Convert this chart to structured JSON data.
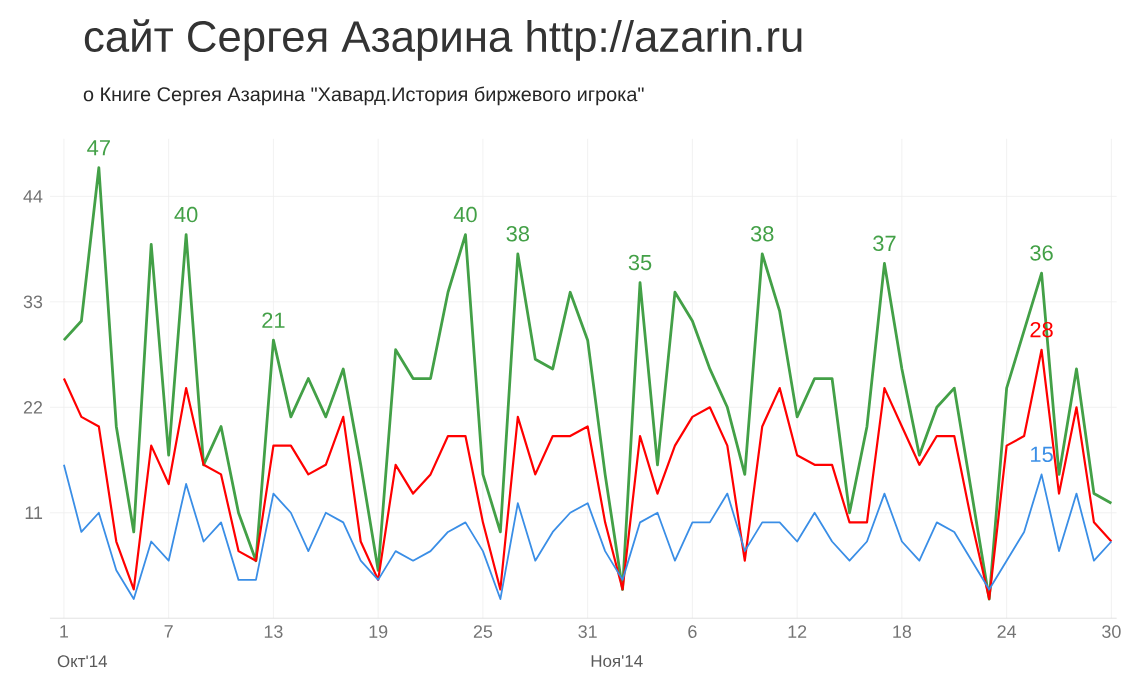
{
  "chart_data": {
    "type": "line",
    "title": "сайт Сергея Азарина http://azarin.ru",
    "subtitle": "о Книге Сергея Азарина \"Хавард.История биржевого игрока\"",
    "categories": [
      "1",
      null,
      null,
      null,
      null,
      null,
      "7",
      null,
      null,
      null,
      null,
      null,
      "13",
      null,
      null,
      null,
      null,
      null,
      "19",
      null,
      null,
      null,
      null,
      null,
      "25",
      null,
      null,
      null,
      null,
      null,
      "31",
      null,
      null,
      null,
      null,
      null,
      "6",
      null,
      null,
      null,
      null,
      null,
      "12",
      null,
      null,
      null,
      null,
      null,
      "18",
      null,
      null,
      null,
      null,
      null,
      "24",
      null,
      null,
      null,
      null,
      null,
      "30"
    ],
    "series": [
      {
        "color": "#43a047",
        "values": [
          29,
          31,
          47,
          20,
          9,
          39,
          17,
          40,
          16,
          20,
          11,
          6,
          29,
          21,
          25,
          21,
          26,
          16,
          5,
          28,
          25,
          25,
          34,
          40,
          15,
          9,
          38,
          27,
          26,
          34,
          29,
          15,
          3,
          35,
          16,
          34,
          31,
          26,
          22,
          15,
          38,
          32,
          21,
          25,
          25,
          11,
          20,
          37,
          26,
          17,
          22,
          24,
          13,
          2,
          24,
          30,
          36,
          15,
          26,
          13,
          12
        ],
        "value_labels": [
          null,
          null,
          "47",
          null,
          null,
          null,
          null,
          "40",
          null,
          null,
          null,
          null,
          null,
          null,
          null,
          null,
          null,
          null,
          null,
          null,
          null,
          null,
          null,
          "40",
          null,
          null,
          "38",
          null,
          null,
          null,
          null,
          null,
          null,
          "35",
          null,
          null,
          null,
          null,
          null,
          null,
          "38",
          null,
          null,
          null,
          null,
          null,
          null,
          "37",
          null,
          null,
          null,
          null,
          null,
          null,
          null,
          null,
          "36",
          null,
          null,
          null,
          null
        ]
      },
      {
        "color": "#ff0000",
        "values": [
          25,
          21,
          20,
          8,
          3,
          18,
          14,
          24,
          16,
          15,
          7,
          6,
          18,
          18,
          15,
          16,
          21,
          8,
          4,
          16,
          13,
          15,
          19,
          19,
          10,
          3,
          21,
          15,
          19,
          19,
          20,
          10,
          3,
          19,
          13,
          18,
          21,
          22,
          18,
          6,
          20,
          24,
          17,
          16,
          16,
          10,
          10,
          24,
          20,
          16,
          19,
          19,
          10,
          2,
          18,
          19,
          28,
          13,
          22,
          10,
          8
        ],
        "value_labels": [
          null,
          null,
          null,
          null,
          null,
          null,
          null,
          null,
          null,
          null,
          null,
          null,
          null,
          null,
          null,
          null,
          null,
          null,
          null,
          null,
          null,
          null,
          null,
          null,
          null,
          null,
          null,
          null,
          null,
          null,
          null,
          null,
          null,
          null,
          null,
          null,
          null,
          null,
          null,
          null,
          null,
          null,
          null,
          null,
          null,
          null,
          null,
          null,
          null,
          null,
          null,
          null,
          null,
          null,
          null,
          null,
          "28",
          null,
          null,
          null,
          null
        ]
      },
      {
        "color": "#3a8ee6",
        "values": [
          16,
          9,
          11,
          5,
          2,
          8,
          6,
          14,
          8,
          10,
          4,
          4,
          13,
          11,
          7,
          11,
          10,
          6,
          4,
          7,
          6,
          7,
          9,
          10,
          7,
          2,
          12,
          6,
          9,
          11,
          12,
          7,
          4,
          10,
          11,
          6,
          10,
          10,
          13,
          7,
          10,
          10,
          8,
          11,
          8,
          6,
          8,
          13,
          8,
          6,
          10,
          9,
          6,
          3,
          6,
          9,
          15,
          7,
          13,
          6,
          8
        ],
        "value_labels": [
          null,
          null,
          null,
          null,
          null,
          null,
          null,
          null,
          null,
          null,
          null,
          null,
          null,
          null,
          null,
          null,
          null,
          null,
          null,
          null,
          null,
          null,
          null,
          null,
          null,
          null,
          null,
          null,
          null,
          null,
          null,
          null,
          null,
          null,
          null,
          null,
          null,
          null,
          null,
          null,
          null,
          null,
          null,
          null,
          null,
          null,
          null,
          null,
          null,
          null,
          null,
          null,
          null,
          null,
          null,
          null,
          "15",
          null,
          null,
          null,
          null
        ]
      }
    ],
    "annotations": [
      "Окт'14",
      "Ноя'14",
      {
        "text": "21",
        "x": "13",
        "y": 29
      }
    ],
    "ylim": [
      0,
      50
    ],
    "yticks": [
      11,
      22,
      33,
      44
    ],
    "grid": true,
    "marker": "none",
    "line_style": "solid"
  }
}
